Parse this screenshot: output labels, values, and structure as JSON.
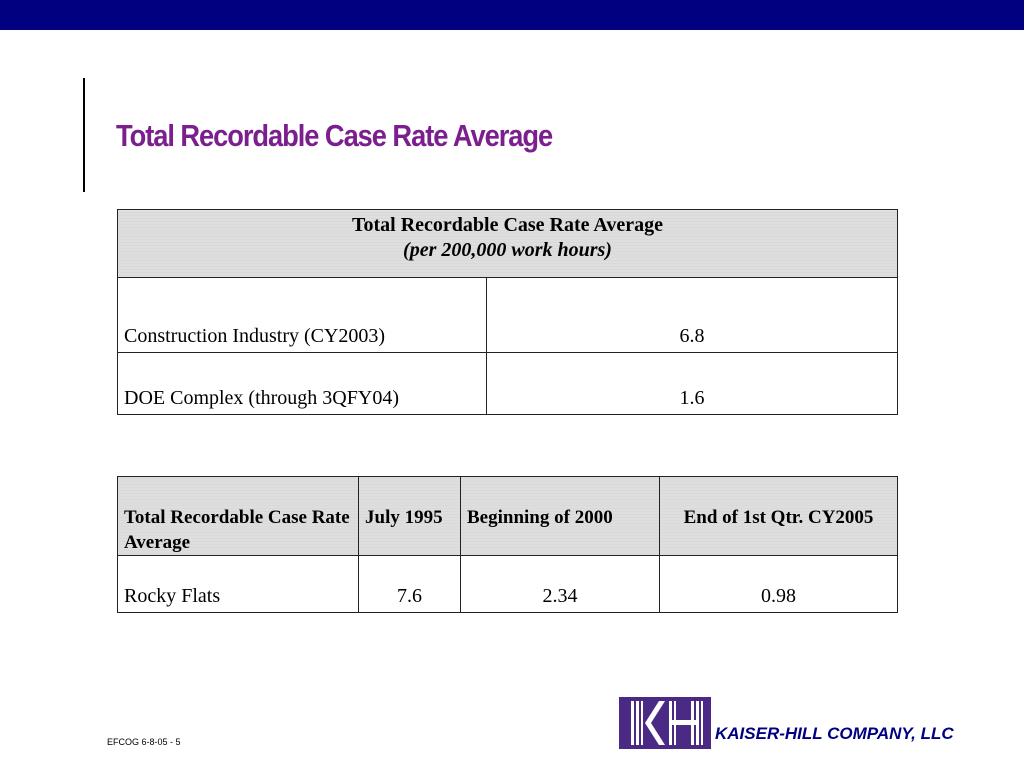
{
  "slide": {
    "title": "Total Recordable Case Rate Average",
    "footer_code": "EFCOG 6-8-05 - 5",
    "company": "KAISER-HILL COMPANY, LLC"
  },
  "table1": {
    "header_title": "Total Recordable Case Rate Average",
    "header_subtitle": "(per 200,000 work hours)",
    "rows": [
      {
        "label": "Construction Industry  (CY2003)",
        "value": "6.8"
      },
      {
        "label": "DOE Complex  (through 3QFY04)",
        "value": "1.6"
      }
    ]
  },
  "table2": {
    "headers": [
      "Total Recordable Case Rate Average",
      "July 1995",
      "Beginning of 2000",
      "End of 1st Qtr. CY2005"
    ],
    "rows": [
      {
        "label": "Rocky Flats",
        "values": [
          "7.6",
          "2.34",
          "0.98"
        ]
      }
    ]
  },
  "colors": {
    "top_bar": "#000080",
    "title": "#7b1f8f",
    "header_fill": "#d9d9d9",
    "company_text": "#000080",
    "logo": "#4b2a86"
  },
  "icons": {
    "logo": "kaiser-hill-kh-logo"
  }
}
